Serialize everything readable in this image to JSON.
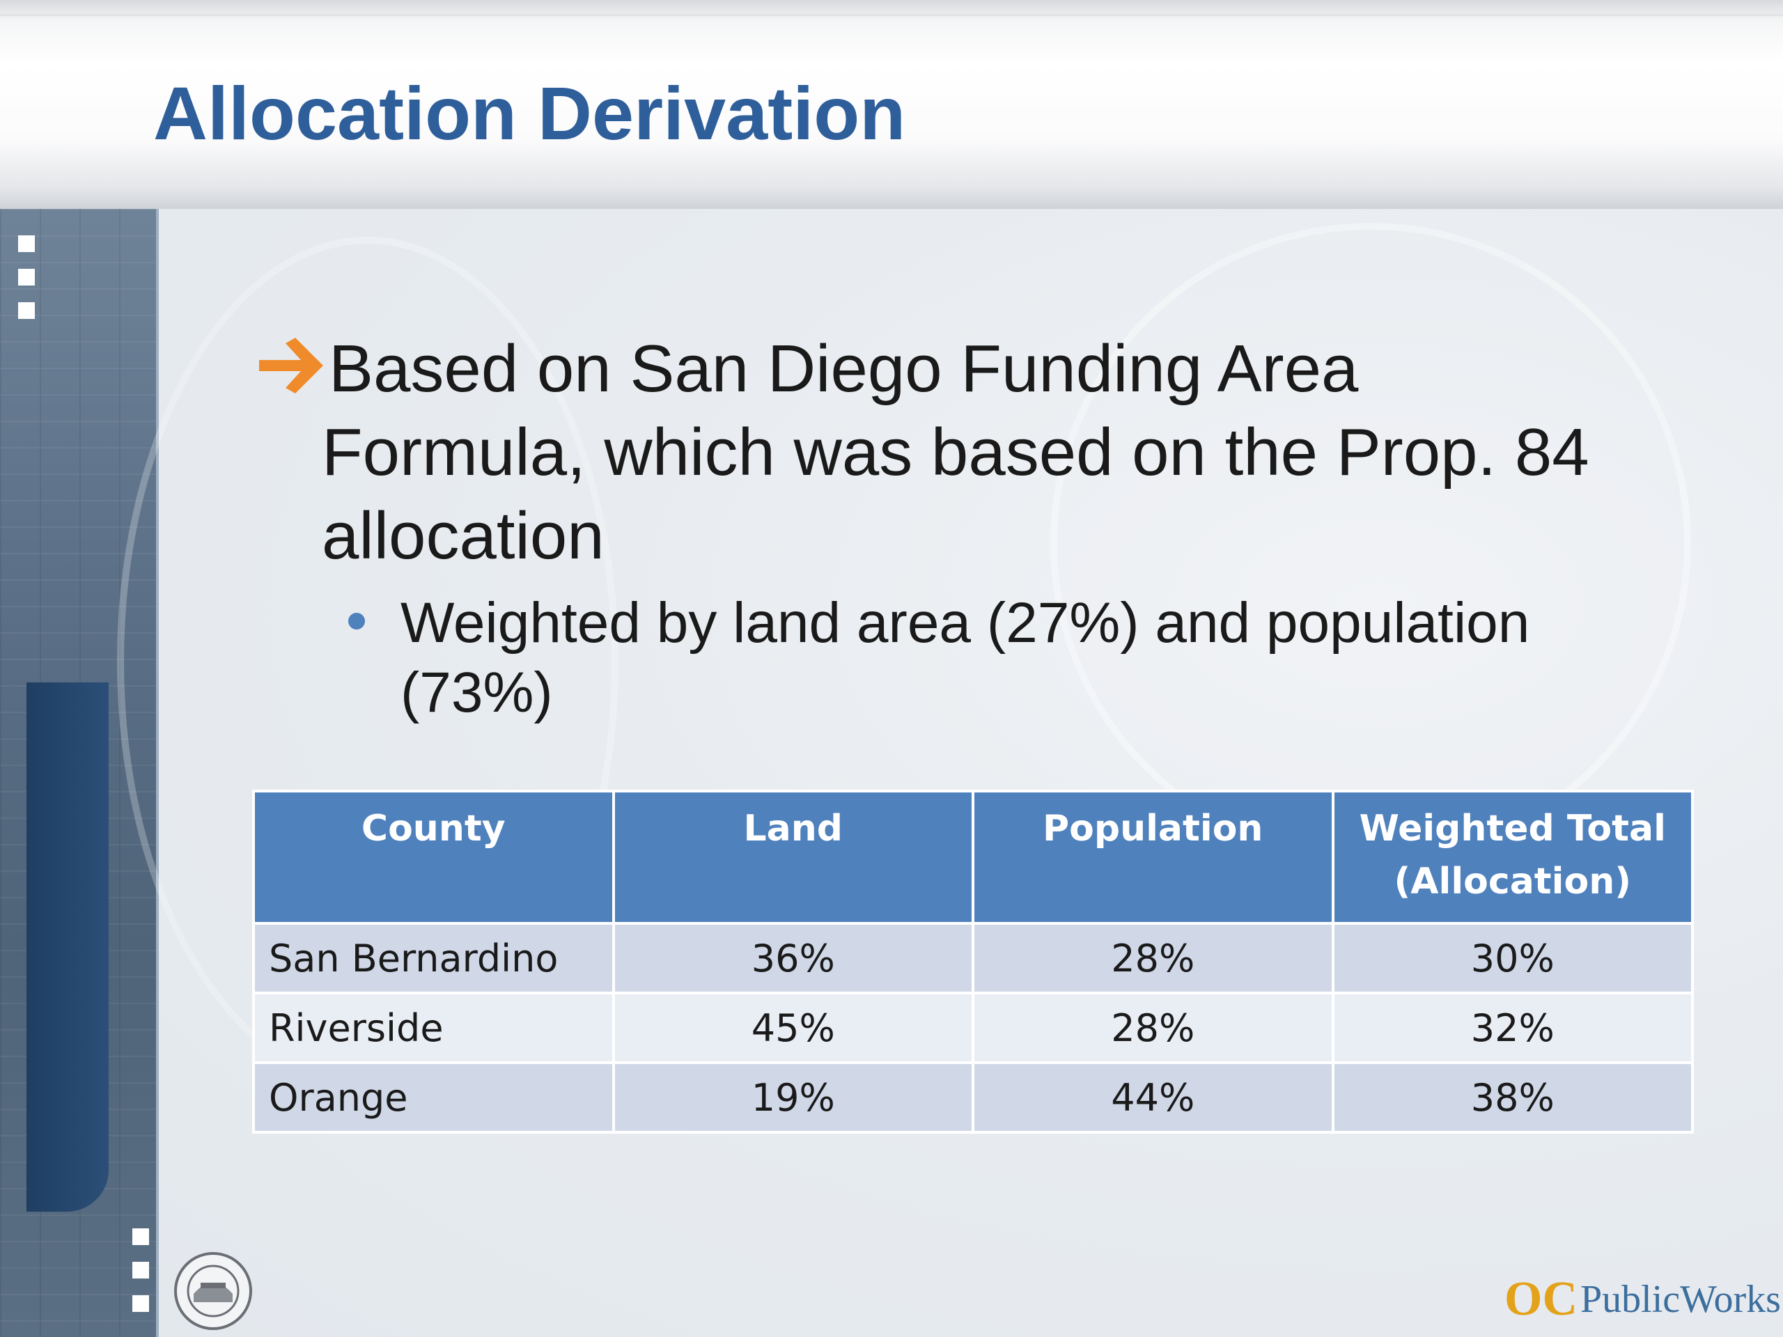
{
  "slide": {
    "title": "Allocation Derivation",
    "bullet1_lines": [
      "Based on San Diego Funding Area",
      "Formula, which was based on the Prop. 84",
      "allocation"
    ],
    "bullet2_lines": [
      "Weighted by land area (27%) and population",
      "(73%)"
    ]
  },
  "table": {
    "headers": [
      "County",
      "Land",
      "Population",
      "Weighted Total (Allocation)"
    ],
    "header_lines": {
      "weighted_1": "Weighted Total",
      "weighted_2": "(Allocation)"
    },
    "rows": [
      {
        "county": "San Bernardino",
        "land": "36%",
        "population": "28%",
        "weighted": "30%"
      },
      {
        "county": "Riverside",
        "land": "45%",
        "population": "28%",
        "weighted": "32%"
      },
      {
        "county": "Orange",
        "land": "19%",
        "population": "44%",
        "weighted": "38%"
      }
    ]
  },
  "footer": {
    "logo_text": "PublicWorks",
    "logo_mark": "OC"
  },
  "icons": {
    "bullet_arrow": "arrow-right-icon",
    "sub_bullet": "dot-icon",
    "seal": "county-seal-icon"
  },
  "colors": {
    "title": "#2f5f9a",
    "arrow": "#f08b2c",
    "table_header": "#4f81bd",
    "row_odd": "#d0d8e8",
    "row_even": "#e9edf4"
  }
}
